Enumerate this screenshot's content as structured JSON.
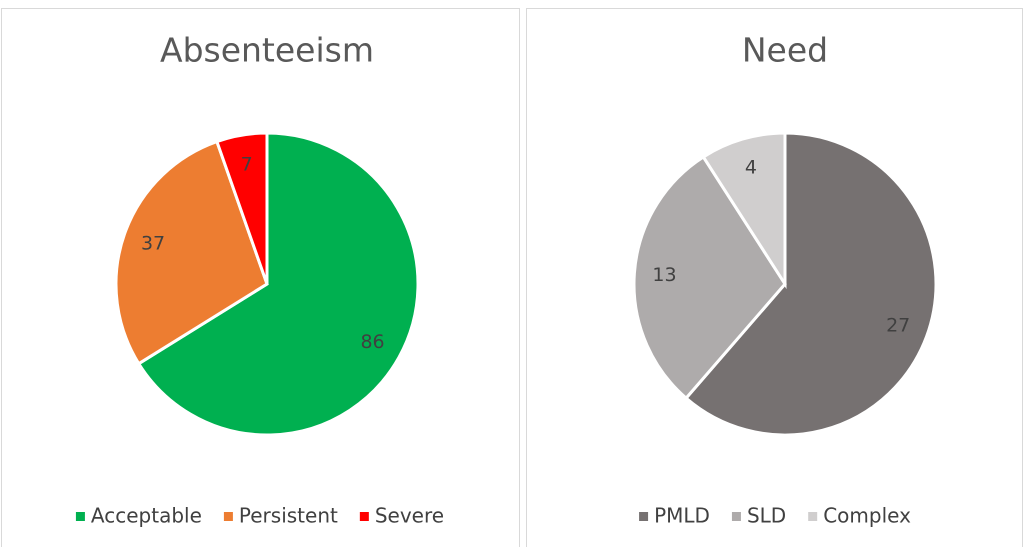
{
  "chart_data": [
    {
      "type": "pie",
      "title": "Absenteeism",
      "categories": [
        "Acceptable",
        "Persistent",
        "Severe"
      ],
      "values": [
        86,
        37,
        7
      ],
      "colors": [
        "#00b050",
        "#ed7d31",
        "#ff0000"
      ],
      "legend": "bottom"
    },
    {
      "type": "pie",
      "title": "Need",
      "categories": [
        "PMLD",
        "SLD",
        "Complex"
      ],
      "values": [
        27,
        13,
        4
      ],
      "colors": [
        "#767171",
        "#aeabab",
        "#d0cece"
      ],
      "legend": "bottom"
    }
  ]
}
